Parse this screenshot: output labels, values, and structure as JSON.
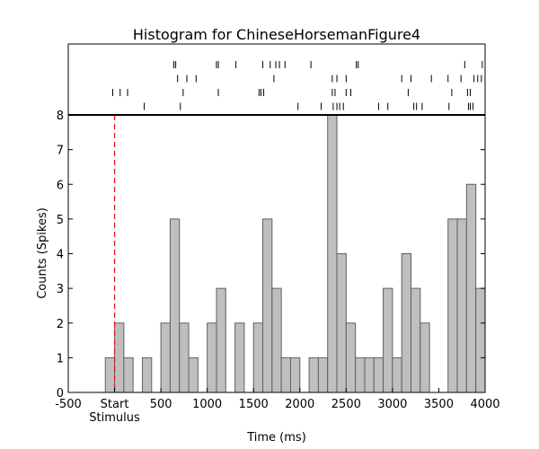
{
  "chart_data": {
    "type": "bar",
    "title": "Histogram for ChineseHorsemanFigure4",
    "xlabel": "Time (ms)",
    "ylabel": "Counts (Spikes)",
    "xlim": [
      -500,
      4000
    ],
    "ylim": [
      0,
      8
    ],
    "xticks": [
      {
        "value": -500,
        "label": "-500"
      },
      {
        "value": 500,
        "label": "500"
      },
      {
        "value": 1000,
        "label": "1000"
      },
      {
        "value": 1500,
        "label": "1500"
      },
      {
        "value": 2000,
        "label": "2000"
      },
      {
        "value": 2500,
        "label": "2500"
      },
      {
        "value": 3000,
        "label": "3000"
      },
      {
        "value": 3500,
        "label": "3500"
      },
      {
        "value": 4000,
        "label": "4000"
      }
    ],
    "start_tick": {
      "value": 0,
      "label": "Start",
      "sublabel": "Stimulus"
    },
    "yticks": [
      0,
      1,
      2,
      3,
      4,
      5,
      6,
      7,
      8
    ],
    "bin_width": 100,
    "bins": [
      {
        "x": -100,
        "count": 1
      },
      {
        "x": 0,
        "count": 2
      },
      {
        "x": 100,
        "count": 1
      },
      {
        "x": 200,
        "count": 0
      },
      {
        "x": 300,
        "count": 1
      },
      {
        "x": 400,
        "count": 0
      },
      {
        "x": 500,
        "count": 2
      },
      {
        "x": 600,
        "count": 5
      },
      {
        "x": 700,
        "count": 2
      },
      {
        "x": 800,
        "count": 1
      },
      {
        "x": 900,
        "count": 0
      },
      {
        "x": 1000,
        "count": 2
      },
      {
        "x": 1100,
        "count": 3
      },
      {
        "x": 1200,
        "count": 0
      },
      {
        "x": 1300,
        "count": 2
      },
      {
        "x": 1400,
        "count": 0
      },
      {
        "x": 1500,
        "count": 2
      },
      {
        "x": 1600,
        "count": 5
      },
      {
        "x": 1700,
        "count": 3
      },
      {
        "x": 1800,
        "count": 1
      },
      {
        "x": 1900,
        "count": 1
      },
      {
        "x": 2000,
        "count": 0
      },
      {
        "x": 2100,
        "count": 1
      },
      {
        "x": 2200,
        "count": 1
      },
      {
        "x": 2300,
        "count": 8
      },
      {
        "x": 2400,
        "count": 4
      },
      {
        "x": 2500,
        "count": 2
      },
      {
        "x": 2600,
        "count": 1
      },
      {
        "x": 2700,
        "count": 1
      },
      {
        "x": 2800,
        "count": 1
      },
      {
        "x": 2900,
        "count": 3
      },
      {
        "x": 3000,
        "count": 1
      },
      {
        "x": 3100,
        "count": 4
      },
      {
        "x": 3200,
        "count": 3
      },
      {
        "x": 3300,
        "count": 2
      },
      {
        "x": 3400,
        "count": 0
      },
      {
        "x": 3500,
        "count": 0
      },
      {
        "x": 3600,
        "count": 5
      },
      {
        "x": 3700,
        "count": 5
      },
      {
        "x": 3800,
        "count": 6
      },
      {
        "x": 3900,
        "count": 3
      }
    ],
    "raster_trials": [
      [
        640,
        660,
        1100,
        1120,
        1310,
        1600,
        1680,
        1740,
        1780,
        1840,
        2120,
        2610,
        2630,
        3780,
        3970
      ],
      [
        680,
        780,
        880,
        1720,
        2350,
        2400,
        2500,
        3100,
        3200,
        3420,
        3600,
        3740,
        3880,
        3920,
        3960
      ],
      [
        -20,
        60,
        140,
        740,
        1120,
        1560,
        1580,
        1610,
        2350,
        2380,
        2500,
        2550,
        3170,
        3640,
        3810,
        3840
      ],
      [
        320,
        710,
        1980,
        2230,
        2360,
        2400,
        2430,
        2470,
        2850,
        2950,
        3230,
        3260,
        3320,
        3610,
        3820,
        3840,
        3870
      ]
    ],
    "stimulus_marker": {
      "value": 0,
      "color": "#e8112d"
    },
    "colors": {
      "bar_fill": "#bfbfbf",
      "bar_edge": "#606060",
      "raster": "#000000"
    },
    "grid": false,
    "legend": "none"
  }
}
